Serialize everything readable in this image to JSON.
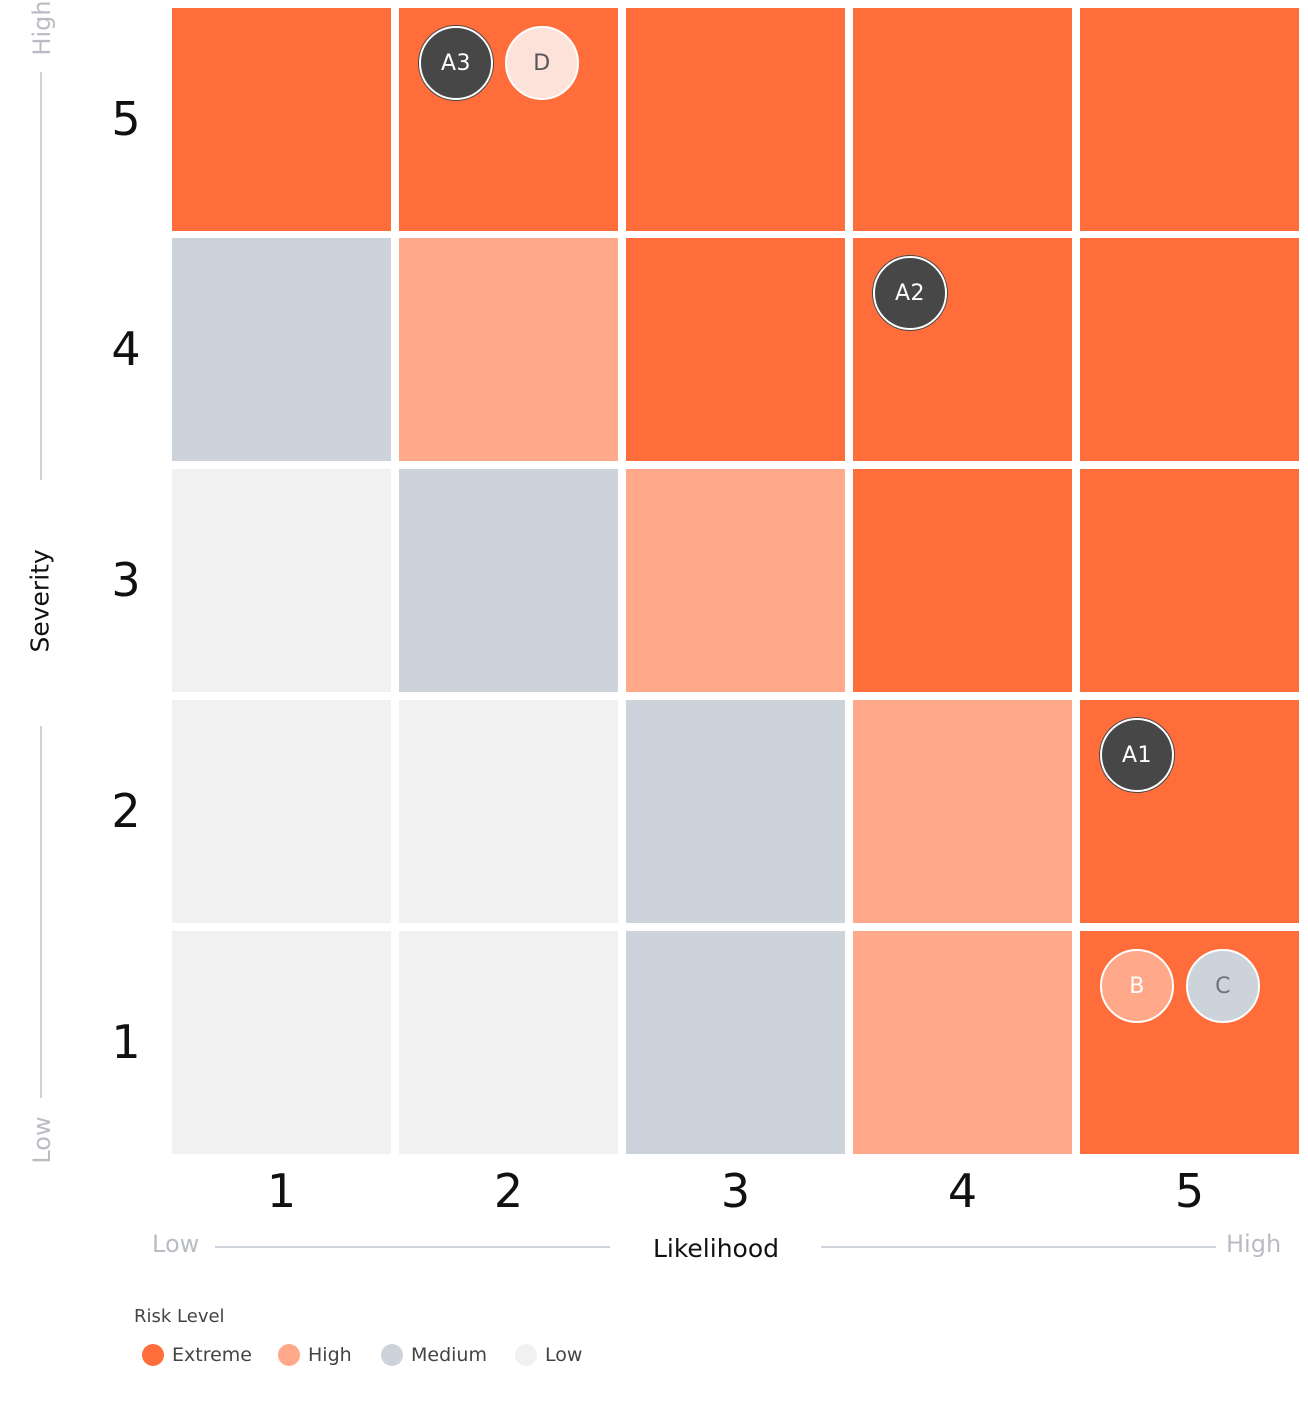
{
  "chart_data": {
    "type": "heatmap",
    "xlabel": "Likelihood",
    "ylabel": "Severity",
    "x_categories": [
      "1",
      "2",
      "3",
      "4",
      "5"
    ],
    "y_categories": [
      "1",
      "2",
      "3",
      "4",
      "5"
    ],
    "x_low_label": "Low",
    "x_high_label": "High",
    "y_low_label": "Low",
    "y_high_label": "High",
    "levels": {
      "Extreme": "#ff6d3b",
      "High": "#ffa88a",
      "Medium": "#cdd3db",
      "Low": "#f1f1f1"
    },
    "grid_by_severity": {
      "5": [
        "Extreme",
        "Extreme",
        "Extreme",
        "Extreme",
        "Extreme"
      ],
      "4": [
        "Medium",
        "High",
        "Extreme",
        "Extreme",
        "Extreme"
      ],
      "3": [
        "Low",
        "Medium",
        "High",
        "Extreme",
        "Extreme"
      ],
      "2": [
        "Low",
        "Low",
        "Medium",
        "High",
        "Extreme"
      ],
      "1": [
        "Low",
        "Low",
        "Medium",
        "High",
        "Extreme"
      ]
    },
    "risks": [
      {
        "label": "A3",
        "likelihood": 2,
        "severity": 5,
        "fill": "#474747",
        "text_color": "#ffffff"
      },
      {
        "label": "D",
        "likelihood": 2,
        "severity": 5,
        "fill": "#fde2da",
        "text_color": "#555555"
      },
      {
        "label": "A2",
        "likelihood": 4,
        "severity": 4,
        "fill": "#474747",
        "text_color": "#ffffff"
      },
      {
        "label": "A1",
        "likelihood": 5,
        "severity": 2,
        "fill": "#474747",
        "text_color": "#ffffff"
      },
      {
        "label": "B",
        "likelihood": 5,
        "severity": 1,
        "fill": "#ffa88a",
        "text_color": "#ffffff"
      },
      {
        "label": "C",
        "likelihood": 5,
        "severity": 1,
        "fill": "#cdd3db",
        "text_color": "#6b7280"
      }
    ],
    "legend": {
      "title": "Risk Level",
      "items": [
        {
          "label": "Extreme",
          "color": "#ff6d3b"
        },
        {
          "label": "High",
          "color": "#ffa88a"
        },
        {
          "label": "Medium",
          "color": "#cdd3db"
        },
        {
          "label": "Low",
          "color": "#f1f1f1"
        }
      ]
    }
  }
}
